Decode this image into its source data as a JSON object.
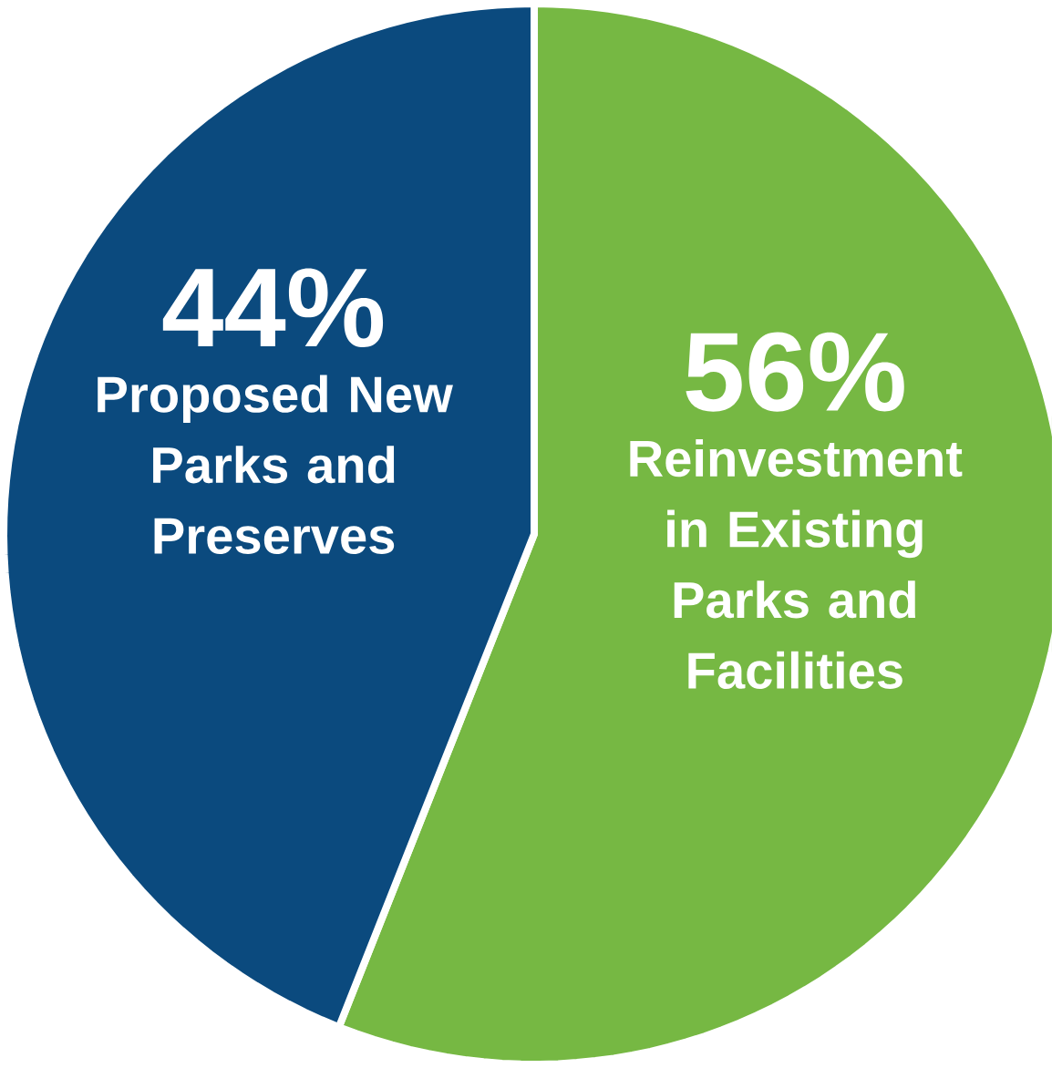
{
  "chart_data": {
    "type": "pie",
    "categories": [
      "Reinvestment in Existing Parks and Facilities",
      "Proposed New Parks and Preserves"
    ],
    "values": [
      56,
      44
    ],
    "value_labels": [
      "56%",
      "44%"
    ],
    "colors": [
      "#76b843",
      "#0b4a7e"
    ]
  }
}
